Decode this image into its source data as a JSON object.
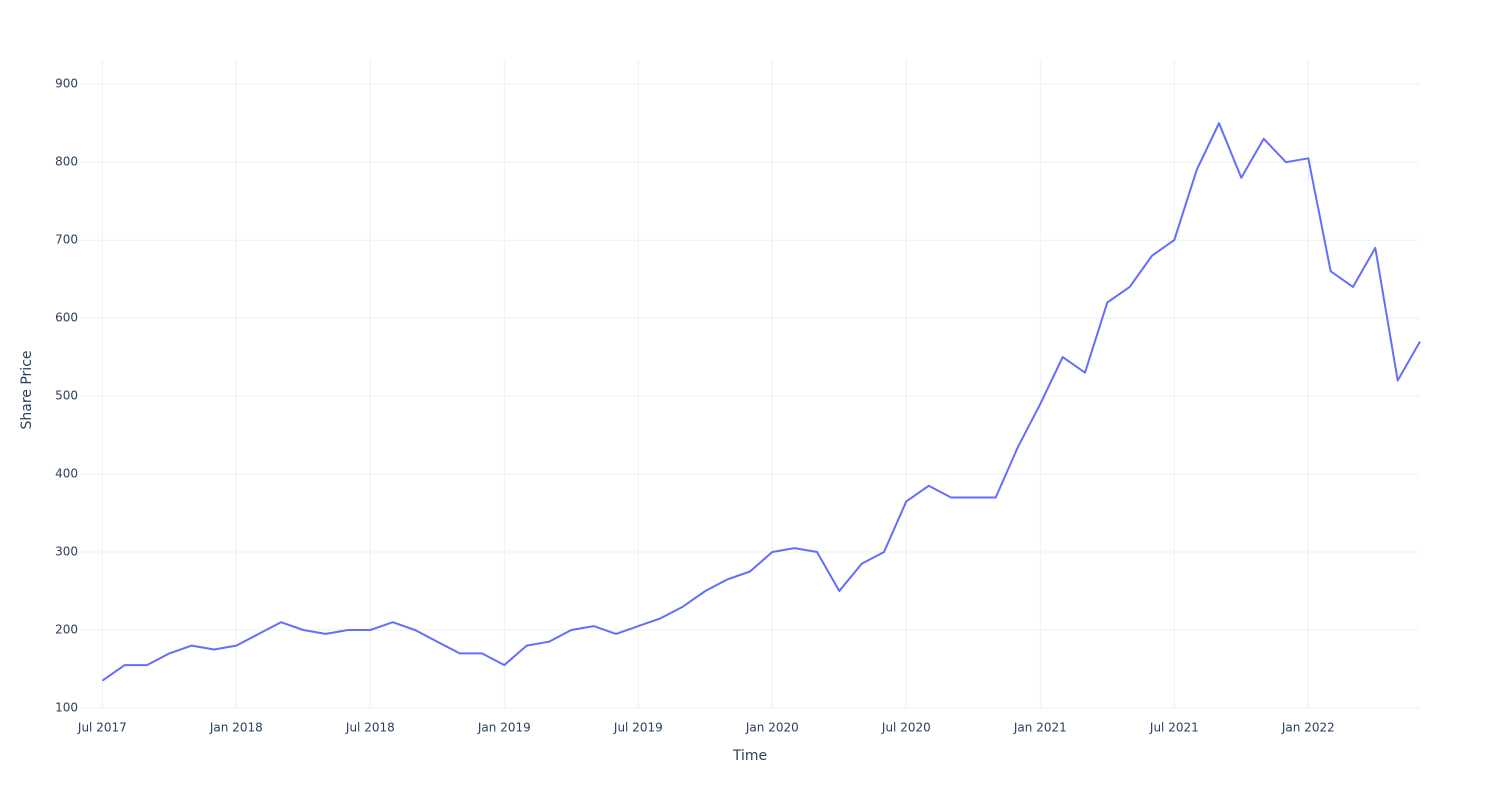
{
  "chart_data": {
    "type": "line",
    "x_label": "Time",
    "y_label": "Share Price",
    "x": [
      "2017-07",
      "2017-08",
      "2017-09",
      "2017-10",
      "2017-11",
      "2017-12",
      "2018-01",
      "2018-02",
      "2018-03",
      "2018-04",
      "2018-05",
      "2018-06",
      "2018-07",
      "2018-08",
      "2018-09",
      "2018-10",
      "2018-11",
      "2018-12",
      "2019-01",
      "2019-02",
      "2019-03",
      "2019-04",
      "2019-05",
      "2019-06",
      "2019-07",
      "2019-08",
      "2019-09",
      "2019-10",
      "2019-11",
      "2019-12",
      "2020-01",
      "2020-02",
      "2020-03",
      "2020-04",
      "2020-05",
      "2020-06",
      "2020-07",
      "2020-08",
      "2020-09",
      "2020-10",
      "2020-11",
      "2020-12",
      "2021-01",
      "2021-02",
      "2021-03",
      "2021-04",
      "2021-05",
      "2021-06",
      "2021-07",
      "2021-08",
      "2021-09",
      "2021-10",
      "2021-11",
      "2021-12",
      "2022-01",
      "2022-02",
      "2022-03",
      "2022-04",
      "2022-05",
      "2022-06"
    ],
    "series": [
      {
        "name": "Share Price",
        "color": "#636efa",
        "values": [
          135,
          155,
          155,
          170,
          180,
          175,
          180,
          195,
          210,
          200,
          195,
          200,
          200,
          210,
          200,
          185,
          170,
          170,
          155,
          180,
          185,
          200,
          205,
          195,
          205,
          215,
          230,
          250,
          265,
          275,
          300,
          305,
          300,
          250,
          285,
          300,
          365,
          385,
          370,
          370,
          370,
          435,
          490,
          550,
          530,
          620,
          640,
          680,
          700,
          790,
          850,
          780,
          830,
          800,
          805,
          660,
          640,
          690,
          520,
          570
        ]
      }
    ],
    "xlim": [
      "2017-06",
      "2022-06"
    ],
    "xticks": [
      {
        "value": "2017-07",
        "label": "Jul 2017"
      },
      {
        "value": "2018-01",
        "label": "Jan 2018"
      },
      {
        "value": "2018-07",
        "label": "Jul 2018"
      },
      {
        "value": "2019-01",
        "label": "Jan 2019"
      },
      {
        "value": "2019-07",
        "label": "Jul 2019"
      },
      {
        "value": "2020-01",
        "label": "Jan 2020"
      },
      {
        "value": "2020-07",
        "label": "Jul 2020"
      },
      {
        "value": "2021-01",
        "label": "Jan 2021"
      },
      {
        "value": "2021-07",
        "label": "Jul 2021"
      },
      {
        "value": "2022-01",
        "label": "Jan 2022"
      }
    ],
    "ylim": [
      100,
      931
    ],
    "yticks": [
      100,
      200,
      300,
      400,
      500,
      600,
      700,
      800,
      900
    ],
    "grid": true
  }
}
